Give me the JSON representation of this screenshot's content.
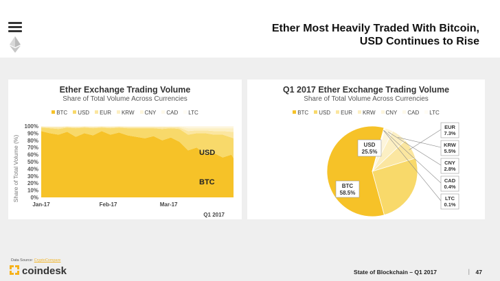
{
  "header": {
    "title_line1": "Ether Most Heavily Traded With Bitcoin,",
    "title_line2": "USD Continues to Rise"
  },
  "colors": {
    "BTC": "#f6c228",
    "USD": "#f8d96a",
    "EUR": "#fbe6a0",
    "KRW": "#fcefc3",
    "CNY": "#fdf5dc",
    "CAD": "#fef9ea",
    "LTC": "#fffcf4"
  },
  "chart_data": [
    {
      "type": "area",
      "title": "Ether Exchange Trading Volume",
      "subtitle": "Share of Total Volume Across Currencies",
      "ylabel": "Share of Total Volume (%)",
      "ylim": [
        0,
        100
      ],
      "yticks": [
        "0%",
        "10%",
        "20%",
        "30%",
        "40%",
        "50%",
        "60%",
        "70%",
        "80%",
        "90%",
        "100%"
      ],
      "xticks": [
        "Jan-17",
        "Feb-17",
        "Mar-17"
      ],
      "period_label": "Q1 2017",
      "legend": [
        "BTC",
        "USD",
        "EUR",
        "KRW",
        "CNY",
        "CAD",
        "LTC"
      ],
      "series_labels": [
        "USD",
        "BTC"
      ],
      "x": [
        0,
        4,
        8,
        12,
        16,
        20,
        24,
        28,
        32,
        36,
        40,
        44,
        48,
        52,
        56,
        60,
        64,
        68,
        72,
        76,
        80,
        84,
        88,
        89
      ],
      "series": [
        {
          "name": "BTC",
          "values": [
            93,
            90,
            88,
            92,
            85,
            90,
            87,
            93,
            88,
            91,
            87,
            85,
            83,
            86,
            80,
            84,
            78,
            66,
            70,
            60,
            62,
            56,
            60,
            55
          ]
        },
        {
          "name": "USD",
          "values": [
            5,
            7,
            8,
            6,
            12,
            8,
            10,
            5,
            9,
            7,
            10,
            12,
            14,
            11,
            16,
            13,
            18,
            22,
            20,
            30,
            26,
            32,
            24,
            28
          ]
        },
        {
          "name": "EUR",
          "values": [
            1,
            1.5,
            2,
            1,
            1.5,
            1,
            1.5,
            1,
            1.5,
            1,
            1.5,
            1.5,
            1.5,
            1.5,
            2,
            1.5,
            2,
            5,
            4,
            4,
            5,
            5,
            8,
            9
          ]
        },
        {
          "name": "KRW",
          "values": [
            0.5,
            0.5,
            1,
            0.5,
            0.5,
            0.5,
            0.7,
            0.5,
            0.7,
            0.5,
            0.7,
            0.7,
            0.7,
            0.7,
            1,
            0.7,
            1,
            4,
            3,
            3,
            4,
            4,
            5,
            5
          ]
        },
        {
          "name": "CNY",
          "values": [
            0.3,
            0.5,
            0.5,
            0.3,
            0.5,
            0.3,
            0.5,
            0.3,
            0.5,
            0.3,
            0.5,
            0.5,
            0.5,
            0.5,
            0.7,
            0.5,
            0.7,
            2.5,
            2.5,
            2.5,
            2.5,
            2.5,
            2.5,
            2.5
          ]
        },
        {
          "name": "CAD",
          "values": [
            0.1,
            0.1,
            0.1,
            0.1,
            0.1,
            0.1,
            0.1,
            0.1,
            0.1,
            0.1,
            0.1,
            0.1,
            0.1,
            0.1,
            0.1,
            0.1,
            0.1,
            0.3,
            0.3,
            0.3,
            0.3,
            0.3,
            0.3,
            0.3
          ]
        },
        {
          "name": "LTC",
          "values": [
            0.1,
            0.1,
            0.1,
            0.1,
            0.1,
            0.1,
            0.1,
            0.1,
            0.1,
            0.1,
            0.1,
            0.1,
            0.1,
            0.1,
            0.1,
            0.1,
            0.1,
            0.1,
            0.1,
            0.1,
            0.1,
            0.1,
            0.1,
            0.1
          ]
        }
      ]
    },
    {
      "type": "pie",
      "title": "Q1 2017 Ether Exchange Trading Volume",
      "subtitle": "Share of Total Volume Across Currencies",
      "legend": [
        "BTC",
        "USD",
        "EUR",
        "KRW",
        "CNY",
        "CAD",
        "LTC"
      ],
      "slices": [
        {
          "name": "BTC",
          "label": "BTC",
          "value": 58.5,
          "pct": "58.5%"
        },
        {
          "name": "USD",
          "label": "USD",
          "value": 25.5,
          "pct": "25.5%"
        },
        {
          "name": "EUR",
          "label": "EUR",
          "value": 7.3,
          "pct": "7.3%"
        },
        {
          "name": "KRW",
          "label": "KRW",
          "value": 5.5,
          "pct": "5.5%"
        },
        {
          "name": "CNY",
          "label": "CNY",
          "value": 2.8,
          "pct": "2.8%"
        },
        {
          "name": "CAD",
          "label": "CAD",
          "value": 0.4,
          "pct": "0.4%"
        },
        {
          "name": "LTC",
          "label": "LTC",
          "value": 0.1,
          "pct": "0.1%"
        }
      ]
    }
  ],
  "footer": {
    "source_prefix": "Data Source: ",
    "source_link": "CryptoCompare",
    "brand": "coindesk",
    "report": "State of Blockchain – Q1 2017",
    "separator": "|",
    "page": "47"
  }
}
